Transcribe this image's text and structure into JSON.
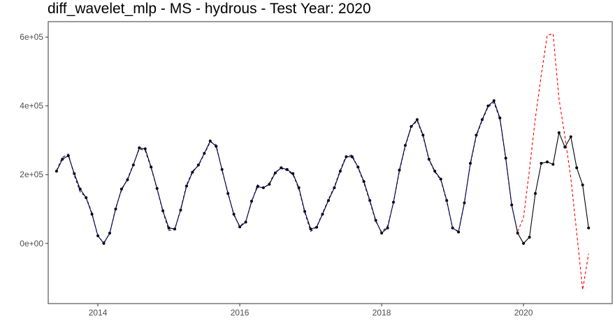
{
  "chart_data": {
    "type": "line",
    "title": "diff_wavelet_mlp - MS - hydrous - Test Year: 2020",
    "xlabel": "",
    "ylabel": "",
    "xlim": [
      2013.3,
      2021.25
    ],
    "ylim": [
      -175000,
      645000
    ],
    "x_ticks": [
      {
        "value": 2014,
        "label": "2014"
      },
      {
        "value": 2016,
        "label": "2016"
      },
      {
        "value": 2018,
        "label": "2018"
      },
      {
        "value": 2020,
        "label": "2020"
      }
    ],
    "y_ticks": [
      {
        "value": 0,
        "label": "0e+00"
      },
      {
        "value": 200000,
        "label": "2e+05"
      },
      {
        "value": 400000,
        "label": "4e+05"
      },
      {
        "value": 600000,
        "label": "6e+05"
      }
    ],
    "grid": false,
    "x_start": 2013.417,
    "x_step": 0.08333,
    "series": [
      {
        "name": "actual",
        "style": "solid-with-points",
        "color": "#000000",
        "values": [
          210000,
          245000,
          255000,
          203000,
          158000,
          133000,
          85000,
          22000,
          0,
          30000,
          100000,
          158000,
          185000,
          228000,
          278000,
          275000,
          222000,
          160000,
          95000,
          45000,
          42000,
          97000,
          167000,
          207000,
          228000,
          262000,
          298000,
          282000,
          215000,
          145000,
          85000,
          48000,
          62000,
          123000,
          165000,
          162000,
          172000,
          205000,
          220000,
          215000,
          203000,
          162000,
          93000,
          42000,
          47000,
          85000,
          125000,
          162000,
          210000,
          252000,
          252000,
          222000,
          180000,
          125000,
          67000,
          30000,
          45000,
          120000,
          213000,
          285000,
          340000,
          360000,
          315000,
          245000,
          210000,
          187000,
          125000,
          45000,
          33000,
          118000,
          233000,
          315000,
          360000,
          400000,
          415000,
          365000,
          248000,
          112000,
          30000,
          0,
          18000,
          145000,
          233000,
          237000,
          230000,
          322000,
          280000,
          310000,
          220000,
          170000,
          45000
        ]
      },
      {
        "name": "fitted",
        "style": "dashed",
        "color": "#00008b",
        "values": [
          212000,
          250000,
          260000,
          198000,
          150000,
          135000,
          88000,
          20000,
          3000,
          28000,
          103000,
          155000,
          188000,
          230000,
          275000,
          270000,
          220000,
          158000,
          93000,
          38000,
          40000,
          100000,
          170000,
          210000,
          226000,
          260000,
          295000,
          287000,
          212000,
          148000,
          82000,
          50000,
          64000,
          120000,
          170000,
          160000,
          175000,
          208000,
          218000,
          212000,
          200000,
          158000,
          90000,
          35000,
          48000,
          88000,
          128000,
          165000,
          213000,
          255000,
          257000,
          220000,
          176000,
          122000,
          64000,
          33000,
          50000,
          118000,
          210000,
          282000,
          338000,
          357000,
          312000,
          243000,
          208000,
          185000,
          122000,
          45000,
          35000,
          120000,
          230000,
          312000,
          357000,
          397000,
          410000,
          362000,
          245000,
          110000,
          32000
        ]
      },
      {
        "name": "forecast",
        "style": "dashed",
        "color": "#ff0000",
        "x_start": 2019.917,
        "values": [
          35000,
          75000,
          215000,
          365000,
          490000,
          605000,
          610000,
          420000,
          310000,
          190000,
          30000,
          -135000,
          -30000
        ]
      }
    ]
  }
}
